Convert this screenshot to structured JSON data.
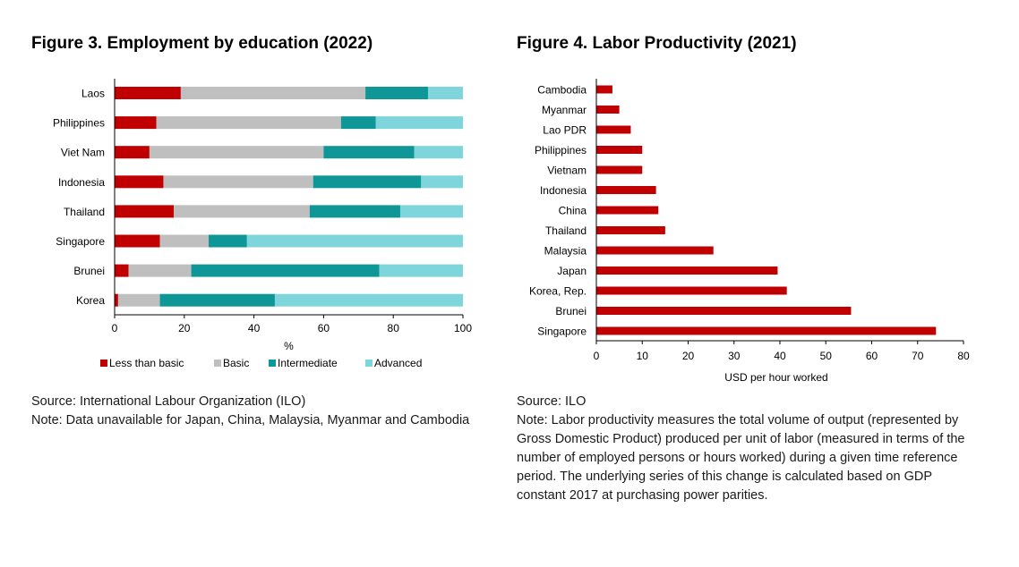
{
  "figure3": {
    "title": "Figure 3. Employment by education (2022)",
    "source": "Source: International Labour Organization (ILO)",
    "note": "Note: Data unavailable for Japan, China, Malaysia, Myanmar and Cambodia"
  },
  "figure4": {
    "title": "Figure 4. Labor Productivity (2021)",
    "source": "Source: ILO",
    "note": "Note: Labor productivity measures the total volume of output (represented by Gross Domestic Product) produced per unit of labor (measured in terms of the number of employed persons or hours worked) during a given time reference period. The underlying series of this change is calculated based on GDP constant 2017 at purchasing power parities."
  },
  "chart_data": [
    {
      "type": "bar",
      "orientation": "horizontal",
      "stacked": true,
      "categories": [
        "Laos",
        "Philippines",
        "Viet Nam",
        "Indonesia",
        "Thailand",
        "Singapore",
        "Brunei",
        "Korea"
      ],
      "series": [
        {
          "name": "Less than basic",
          "color": "#c00000",
          "values": [
            19,
            12,
            10,
            14,
            17,
            13,
            4,
            1
          ]
        },
        {
          "name": "Basic",
          "color": "#bfbfbf",
          "values": [
            53,
            53,
            50,
            43,
            39,
            14,
            18,
            12
          ]
        },
        {
          "name": "Intermediate",
          "color": "#0f9696",
          "values": [
            18,
            10,
            26,
            31,
            26,
            11,
            54,
            33
          ]
        },
        {
          "name": "Advanced",
          "color": "#7fd5dc",
          "values": [
            10,
            25,
            14,
            12,
            18,
            62,
            24,
            54
          ]
        }
      ],
      "xlabel": "%",
      "xlim": [
        0,
        100
      ],
      "xticks": [
        0,
        20,
        40,
        60,
        80,
        100
      ],
      "legend": "bottom",
      "grid": false
    },
    {
      "type": "bar",
      "orientation": "horizontal",
      "categories": [
        "Cambodia",
        "Myanmar",
        "Lao PDR",
        "Philippines",
        "Vietnam",
        "Indonesia",
        "China",
        "Thailand",
        "Malaysia",
        "Japan",
        "Korea, Rep.",
        "Brunei",
        "Singapore"
      ],
      "series": [
        {
          "color": "#c00000",
          "values": [
            3.5,
            5,
            7.5,
            10,
            10,
            13,
            13.5,
            15,
            25.5,
            39.5,
            41.5,
            55.5,
            74
          ]
        }
      ],
      "xlabel": "USD per hour worked",
      "xlim": [
        0,
        80
      ],
      "xticks": [
        0,
        10,
        20,
        30,
        40,
        50,
        60,
        70,
        80
      ],
      "grid": false
    }
  ]
}
